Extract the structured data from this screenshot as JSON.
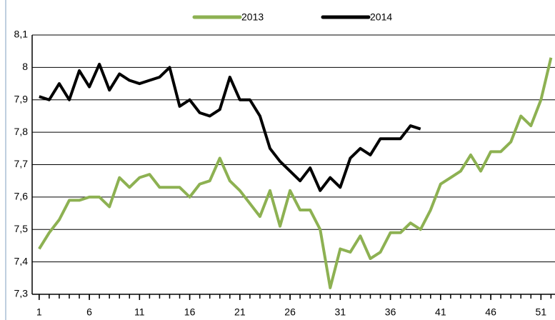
{
  "chart_data": {
    "type": "line",
    "x": [
      1,
      2,
      3,
      4,
      5,
      6,
      7,
      8,
      9,
      10,
      11,
      12,
      13,
      14,
      15,
      16,
      17,
      18,
      19,
      20,
      21,
      22,
      23,
      24,
      25,
      26,
      27,
      28,
      29,
      30,
      31,
      32,
      33,
      34,
      35,
      36,
      37,
      38,
      39,
      40,
      41,
      42,
      43,
      44,
      45,
      46,
      47,
      48,
      49,
      50,
      51,
      52
    ],
    "series": [
      {
        "name": "2013",
        "color": "#8db152",
        "values": [
          7.44,
          7.49,
          7.53,
          7.59,
          7.59,
          7.6,
          7.6,
          7.57,
          7.66,
          7.63,
          7.66,
          7.67,
          7.63,
          7.63,
          7.63,
          7.6,
          7.64,
          7.65,
          7.72,
          7.65,
          7.62,
          7.58,
          7.54,
          7.62,
          7.51,
          7.62,
          7.56,
          7.56,
          7.5,
          7.32,
          7.44,
          7.43,
          7.48,
          7.41,
          7.43,
          7.49,
          7.49,
          7.52,
          7.5,
          7.56,
          7.64,
          7.66,
          7.68,
          7.73,
          7.68,
          7.74,
          7.74,
          7.77,
          7.85,
          7.82,
          7.9,
          8.03
        ]
      },
      {
        "name": "2014",
        "color": "#000000",
        "values": [
          7.91,
          7.9,
          7.95,
          7.9,
          7.99,
          7.94,
          8.01,
          7.93,
          7.98,
          7.96,
          7.95,
          7.96,
          7.97,
          8.0,
          7.88,
          7.9,
          7.86,
          7.85,
          7.87,
          7.97,
          7.9,
          7.9,
          7.85,
          7.75,
          7.71,
          7.68,
          7.65,
          7.69,
          7.62,
          7.66,
          7.63,
          7.72,
          7.75,
          7.73,
          7.78,
          7.78,
          7.78,
          7.82,
          7.81,
          null,
          null,
          null,
          null,
          null,
          null,
          null,
          null,
          null,
          null,
          null,
          null,
          null
        ]
      }
    ],
    "xlim": [
      0.3,
      52.4
    ],
    "xticks": [
      1,
      6,
      11,
      16,
      21,
      26,
      31,
      36,
      41,
      46,
      51
    ],
    "ylim": [
      7.3,
      8.1
    ],
    "yticks": [
      {
        "value": 7.3,
        "label": "7,3"
      },
      {
        "value": 7.4,
        "label": "7,4"
      },
      {
        "value": 7.5,
        "label": "7,5"
      },
      {
        "value": 7.6,
        "label": "7,6"
      },
      {
        "value": 7.7,
        "label": "7,7"
      },
      {
        "value": 7.8,
        "label": "7,8"
      },
      {
        "value": 7.9,
        "label": "7,9"
      },
      8,
      {
        "value": 8.1,
        "label": "8,1"
      }
    ],
    "grid": true
  }
}
